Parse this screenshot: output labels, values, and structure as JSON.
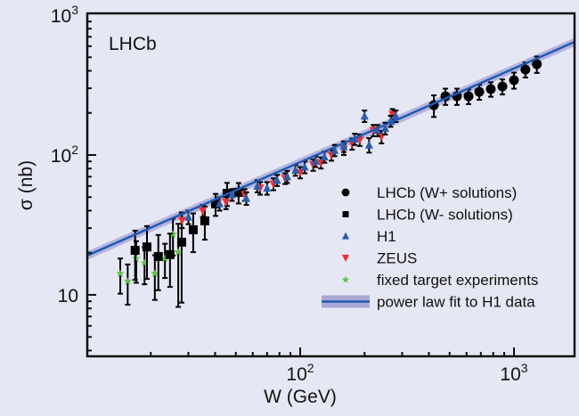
{
  "chart_data": {
    "type": "scatter",
    "title": "",
    "annotation": "LHCb",
    "xlabel": "W (GeV)",
    "ylabel": "σ (nb)",
    "xscale": "log",
    "yscale": "log",
    "xlim": [
      10.1,
      1900
    ],
    "ylim": [
      8,
      1000
    ],
    "x_ticks": [
      {
        "value": 100,
        "label": "10",
        "exp": "2"
      },
      {
        "value": 1000,
        "label": "10",
        "exp": "3"
      }
    ],
    "y_ticks": [
      {
        "value": 10,
        "label": "10",
        "exp": ""
      },
      {
        "value": 100,
        "label": "10",
        "exp": "2"
      },
      {
        "value": 1000,
        "label": "10",
        "exp": "3"
      }
    ],
    "grid": false,
    "legend_position": "bottom-right",
    "colors": {
      "background": "#e6e7f4",
      "lhcb": "#000000",
      "h1": "#2a5db0",
      "zeus": "#ee3030",
      "fixed": "#5cc040",
      "fit": "#1f5bb5",
      "band": "#aaa8d6"
    },
    "series": [
      {
        "name": "LHCb (W+ solutions)",
        "marker": "circle",
        "x": [
          422,
          478,
          541,
          613,
          688,
          779,
          883,
          1000,
          1131,
          1279
        ],
        "y": [
          227,
          263,
          263,
          263,
          283,
          296,
          309,
          343,
          408,
          446
        ],
        "err": [
          40,
          35,
          35,
          32,
          35,
          35,
          38,
          45,
          50,
          60
        ]
      },
      {
        "name": "LHCb (W- solutions)",
        "marker": "square",
        "x": [
          16.9,
          19.2,
          21.7,
          24.6,
          27.9,
          31.6,
          35.8,
          40.2,
          45.5,
          51.5
        ],
        "y": [
          20.8,
          22,
          18.8,
          19.4,
          23.8,
          29.2,
          33.8,
          44.7,
          53.2,
          54
        ],
        "err": [
          8,
          9,
          8,
          8,
          15,
          9,
          9,
          8,
          10,
          9
        ]
      },
      {
        "name": "H1",
        "marker": "triangle-up",
        "x": [
          30,
          42,
          48,
          56,
          63,
          70,
          78,
          87,
          95,
          105,
          118,
          130,
          145,
          160,
          180,
          200,
          210,
          230,
          250,
          265,
          280
        ],
        "y": [
          36,
          45,
          52,
          49,
          60,
          58,
          66,
          70,
          78,
          82,
          90,
          97,
          108,
          115,
          130,
          190,
          118,
          150,
          155,
          175,
          190
        ],
        "err": [
          4,
          5,
          5,
          5,
          6,
          6,
          6,
          7,
          7,
          8,
          8,
          9,
          10,
          10,
          12,
          18,
          14,
          14,
          15,
          16,
          18
        ]
      },
      {
        "name": "ZEUS",
        "marker": "triangle-down",
        "x": [
          28,
          35,
          45,
          55,
          65,
          75,
          85,
          100,
          115,
          125,
          140,
          160,
          175,
          190,
          220,
          240,
          270
        ],
        "y": [
          34,
          40,
          46,
          52,
          58,
          62,
          68,
          75,
          85,
          88,
          100,
          110,
          120,
          128,
          150,
          135,
          195
        ],
        "err": [
          4,
          4,
          5,
          5,
          6,
          6,
          6,
          7,
          8,
          8,
          9,
          10,
          11,
          12,
          14,
          14,
          18
        ]
      },
      {
        "name": "fixed target experiments",
        "marker": "star",
        "x": [
          14.4,
          15.6,
          17.1,
          18.7,
          20.9,
          23.3,
          25.4,
          26.9
        ],
        "y": [
          14.2,
          12.5,
          18.2,
          16.9,
          14.2,
          18.2,
          27.1,
          20.2
        ],
        "err": [
          4,
          4,
          6,
          5,
          5,
          5,
          8,
          12
        ]
      },
      {
        "name": "power law fit to H1 data",
        "type": "line",
        "norm_at_W10": 19,
        "exponent": 0.67,
        "band_rel": 0.07
      }
    ]
  }
}
